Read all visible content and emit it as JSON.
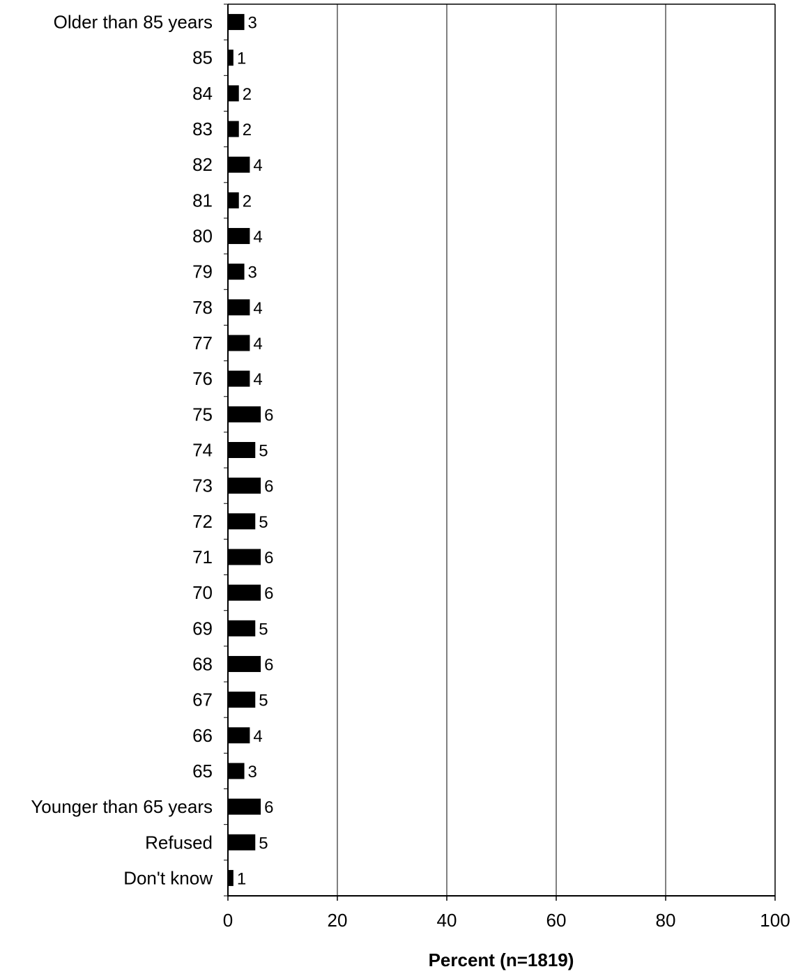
{
  "chart_data": {
    "type": "bar",
    "orientation": "horizontal",
    "title": "",
    "xlabel": "Percent (n=1819)",
    "ylabel": "",
    "xlim": [
      0,
      100
    ],
    "xticks": [
      0,
      20,
      40,
      60,
      80,
      100
    ],
    "grid": "vertical",
    "legend": "none",
    "bar_color": "#000000",
    "categories": [
      "Older than 85 years",
      "85",
      "84",
      "83",
      "82",
      "81",
      "80",
      "79",
      "78",
      "77",
      "76",
      "75",
      "74",
      "73",
      "72",
      "71",
      "70",
      "69",
      "68",
      "67",
      "66",
      "65",
      "Younger than 65 years",
      "Refused",
      "Don't know"
    ],
    "values": [
      3,
      1,
      2,
      2,
      4,
      2,
      4,
      3,
      4,
      4,
      4,
      6,
      5,
      6,
      5,
      6,
      6,
      5,
      6,
      5,
      4,
      3,
      6,
      5,
      1
    ],
    "value_labels": [
      "3",
      "1",
      "2",
      "2",
      "4",
      "2",
      "4",
      "3",
      "4",
      "4",
      "4",
      "6",
      "5",
      "6",
      "5",
      "6",
      "6",
      "5",
      "6",
      "5",
      "4",
      "3",
      "6",
      "5",
      "1"
    ]
  }
}
